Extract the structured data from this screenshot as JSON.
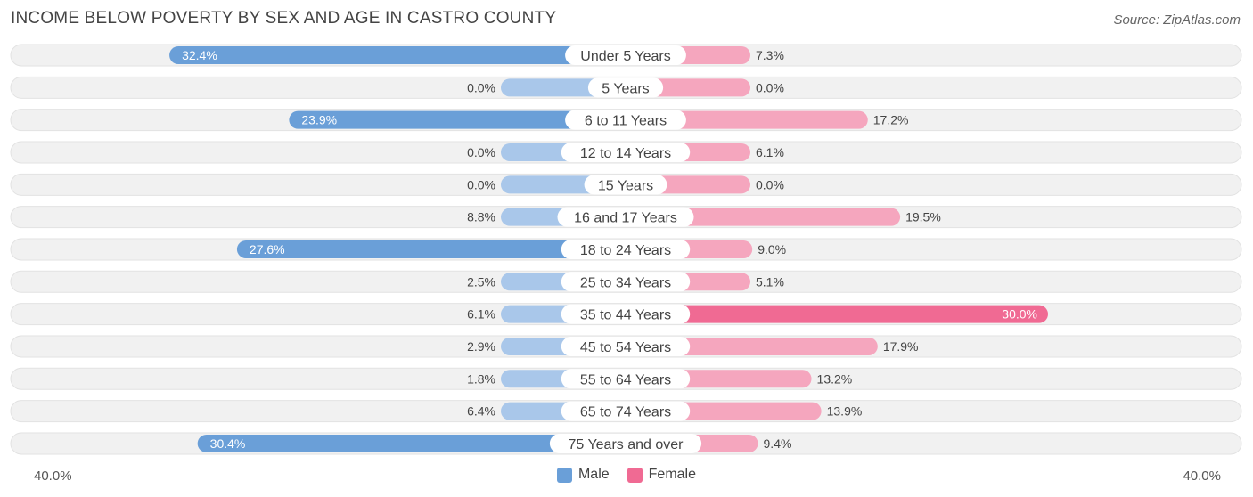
{
  "header": {
    "title": "INCOME BELOW POVERTY BY SEX AND AGE IN CASTRO COUNTY",
    "source": "Source: ZipAtlas.com"
  },
  "axis": {
    "left_label": "40.0%",
    "right_label": "40.0%"
  },
  "legend": {
    "male": "Male",
    "female": "Female"
  },
  "colors": {
    "male_strong": "#6a9fd8",
    "male_light": "#a9c7ea",
    "female_strong": "#f06a93",
    "female_light": "#f5a6be",
    "row_bg": "#f1f1f1",
    "label_text": "#444444"
  },
  "chart_data": {
    "type": "bar",
    "orientation": "horizontal-diverging",
    "title": "INCOME BELOW POVERTY BY SEX AND AGE IN CASTRO COUNTY",
    "xlim": [
      -40,
      40
    ],
    "categories": [
      "Under 5 Years",
      "5 Years",
      "6 to 11 Years",
      "12 to 14 Years",
      "15 Years",
      "16 and 17 Years",
      "18 to 24 Years",
      "25 to 34 Years",
      "35 to 44 Years",
      "45 to 54 Years",
      "55 to 64 Years",
      "65 to 74 Years",
      "75 Years and over"
    ],
    "series": [
      {
        "name": "Male",
        "values": [
          32.4,
          0.0,
          23.9,
          0.0,
          0.0,
          8.8,
          27.6,
          2.5,
          6.1,
          2.9,
          1.8,
          6.4,
          30.4
        ],
        "labels": [
          "32.4%",
          "0.0%",
          "23.9%",
          "0.0%",
          "0.0%",
          "8.8%",
          "27.6%",
          "2.5%",
          "6.1%",
          "2.9%",
          "1.8%",
          "6.4%",
          "30.4%"
        ]
      },
      {
        "name": "Female",
        "values": [
          7.3,
          0.0,
          17.2,
          6.1,
          0.0,
          19.5,
          9.0,
          5.1,
          30.0,
          17.9,
          13.2,
          13.9,
          9.4
        ],
        "labels": [
          "7.3%",
          "0.0%",
          "17.2%",
          "6.1%",
          "0.0%",
          "19.5%",
          "9.0%",
          "5.1%",
          "30.0%",
          "17.9%",
          "13.2%",
          "13.9%",
          "9.4%"
        ]
      }
    ]
  }
}
